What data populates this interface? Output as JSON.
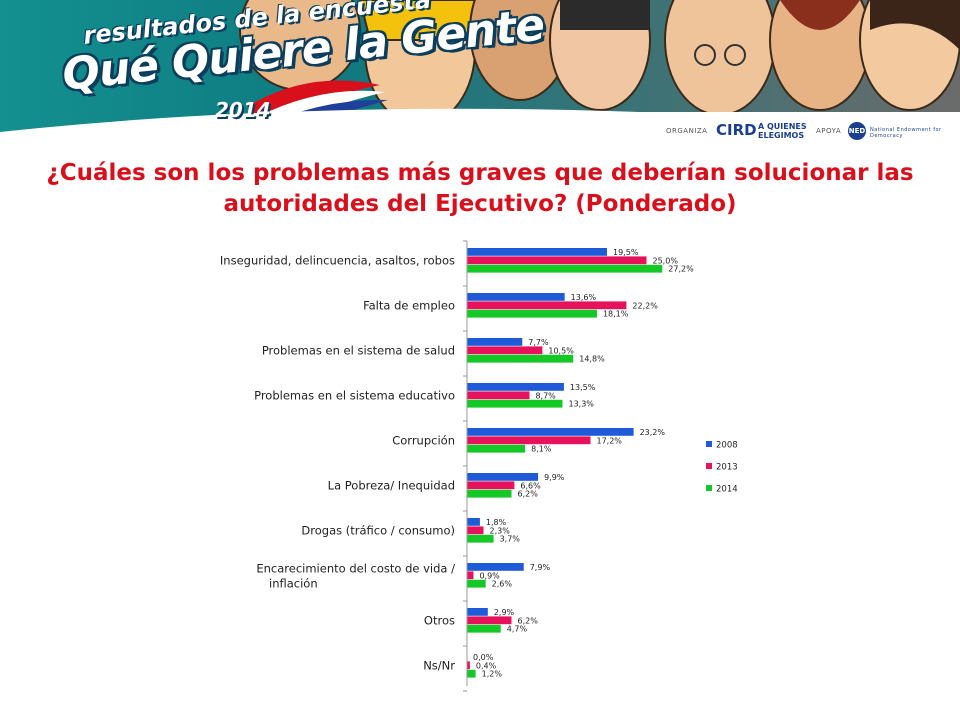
{
  "header": {
    "logo_line1": "resultados de la encuesta",
    "logo_line2": "Qué Quiere la Gente",
    "logo_year": "2014",
    "organiza_label": "ORGANIZA",
    "organizer_logo1": "CIRD",
    "organizer_logo2": "A QUIENES ELEGIMOS",
    "apoya_label": "APOYA",
    "supporter_logo": "NED",
    "supporter_name": "National Endowment for Democracy"
  },
  "colors": {
    "2008": "#1f5bd8",
    "2013": "#e6135c",
    "2014": "#14c826",
    "title": "#d9101c",
    "banner": "#0f7f83"
  },
  "chart_data": {
    "type": "bar",
    "orientation": "horizontal",
    "title": "¿Cuáles son los problemas más graves que deberían solucionar las autoridades del Ejecutivo? (Ponderado)",
    "categories": [
      "Inseguridad, delincuencia, asaltos, robos",
      "Falta de empleo",
      "Problemas en el sistema de salud",
      "Problemas en el sistema educativo",
      "Corrupción",
      "La Pobreza/ Inequidad",
      "Drogas (tráfico / consumo)",
      "Encarecimiento del costo de vida / inflación",
      "Otros",
      "Ns/Nr"
    ],
    "series": [
      {
        "name": "2008",
        "values": [
          19.5,
          13.6,
          7.7,
          13.5,
          23.2,
          9.9,
          1.8,
          7.9,
          2.9,
          0.0
        ],
        "labels": [
          "19,5%",
          "13,6%",
          "7,7%",
          "13,5%",
          "23,2%",
          "9,9%",
          "1,8%",
          "7,9%",
          "2,9%",
          "0,0%"
        ]
      },
      {
        "name": "2013",
        "values": [
          25.0,
          22.2,
          10.5,
          8.7,
          17.2,
          6.6,
          2.3,
          0.9,
          6.2,
          0.4
        ],
        "labels": [
          "25,0%",
          "22,2%",
          "10,5%",
          "8,7%",
          "17,2%",
          "6,6%",
          "2,3%",
          "0,9%",
          "6,2%",
          "0,4%"
        ]
      },
      {
        "name": "2014",
        "values": [
          27.2,
          18.1,
          14.8,
          13.3,
          8.1,
          6.2,
          3.7,
          2.6,
          4.7,
          1.2
        ],
        "labels": [
          "27,2%",
          "18,1%",
          "14,8%",
          "13,3%",
          "8,1%",
          "6,2%",
          "3,7%",
          "2,6%",
          "4,7%",
          "1,2%"
        ]
      }
    ],
    "legend": [
      "2008",
      "2013",
      "2014"
    ],
    "legend_position": "right",
    "grid": false
  }
}
